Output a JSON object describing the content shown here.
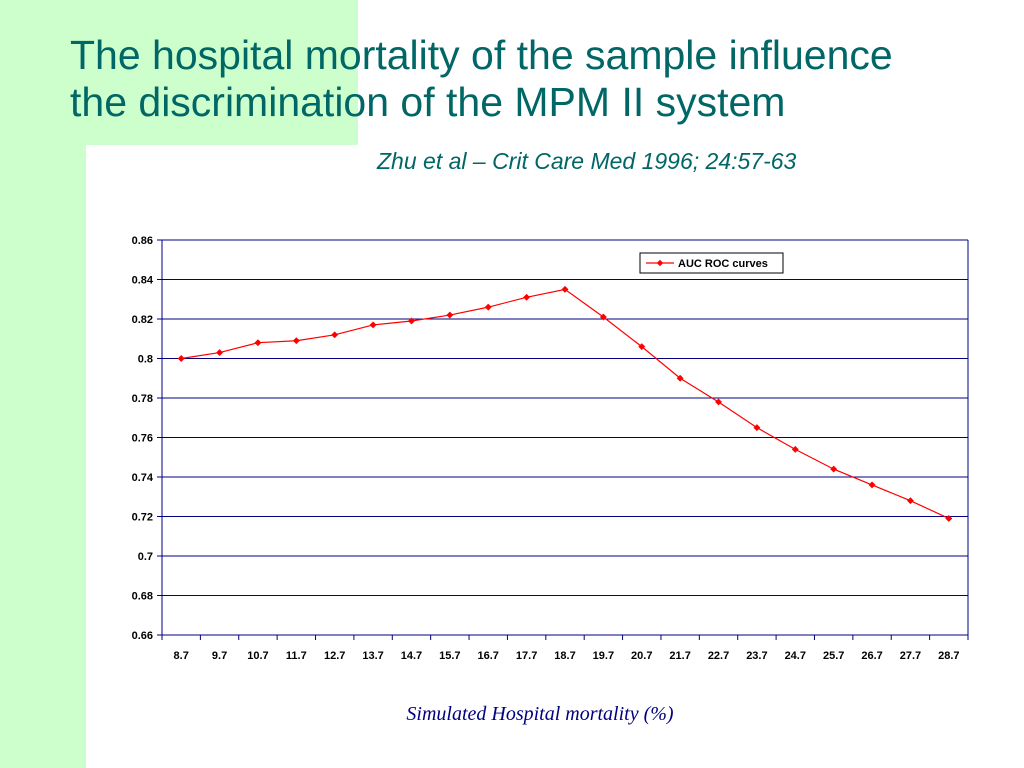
{
  "slide": {
    "title_line1": "The hospital mortality of the sample influence",
    "title_line2": "the discrimination of the MPM II system",
    "citation": "Zhu et al – Crit Care Med 1996; 24:57-63",
    "x_axis_title": "Simulated Hospital mortality (%)"
  },
  "colors": {
    "background_band": "#ccffcc",
    "title": "#006666",
    "series": "#ff0000",
    "grid": "#000080",
    "axis_title": "#000080"
  },
  "chart_data": {
    "type": "line",
    "title": "",
    "xlabel": "Simulated Hospital mortality (%)",
    "ylabel": "",
    "ylim": [
      0.66,
      0.86
    ],
    "y_ticks": [
      "0.86",
      "0.84",
      "0.82",
      "0.8",
      "0.78",
      "0.76",
      "0.74",
      "0.72",
      "0.7",
      "0.68",
      "0.66"
    ],
    "categories": [
      "8.7",
      "9.7",
      "10.7",
      "11.7",
      "12.7",
      "13.7",
      "14.7",
      "15.7",
      "16.7",
      "17.7",
      "18.7",
      "19.7",
      "20.7",
      "21.7",
      "22.7",
      "23.7",
      "24.7",
      "25.7",
      "26.7",
      "27.7",
      "28.7"
    ],
    "series": [
      {
        "name": "AUC ROC curves",
        "values": [
          0.8,
          0.803,
          0.808,
          0.809,
          0.812,
          0.817,
          0.819,
          0.822,
          0.826,
          0.831,
          0.835,
          0.821,
          0.806,
          0.79,
          0.778,
          0.765,
          0.754,
          0.744,
          0.736,
          0.728,
          0.719
        ]
      }
    ],
    "grid": true,
    "legend_position": "top-right"
  }
}
